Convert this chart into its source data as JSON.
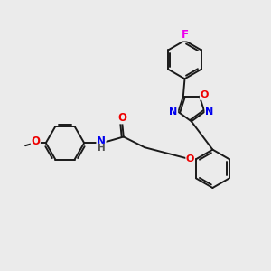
{
  "background_color": "#ebebeb",
  "bond_color": "#1a1a1a",
  "bond_width": 1.4,
  "atom_colors": {
    "F": "#ee00ee",
    "O": "#ee0000",
    "N": "#0000ee",
    "H": "#555555",
    "C": "#1a1a1a"
  },
  "figsize": [
    3.0,
    3.0
  ],
  "dpi": 100
}
